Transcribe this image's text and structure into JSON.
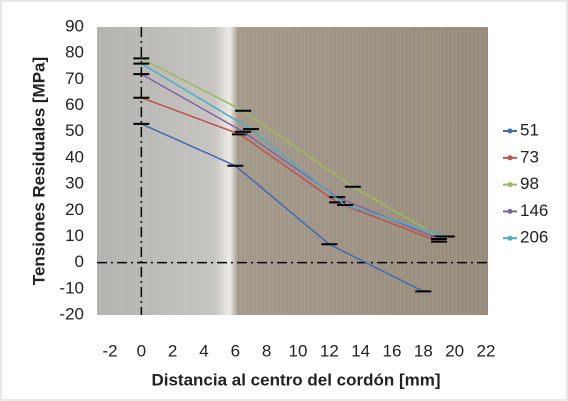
{
  "chart_data": {
    "type": "line",
    "xlabel": "Distancia al centro del cordón [mm]",
    "ylabel": "Tensiones Residuales [MPa]",
    "xlim": [
      -2,
      22
    ],
    "xticks": [
      -2,
      0,
      2,
      4,
      6,
      8,
      10,
      12,
      14,
      16,
      18,
      20,
      22
    ],
    "ylim": [
      -20,
      90
    ],
    "yticks": [
      -20,
      -10,
      0,
      10,
      20,
      30,
      40,
      50,
      60,
      70,
      80,
      90
    ],
    "legend": "right",
    "series": [
      {
        "name": "51",
        "color": "#3f6db3",
        "x": [
          0,
          6,
          12,
          18
        ],
        "values": [
          53,
          37,
          7,
          -11
        ]
      },
      {
        "name": "73",
        "color": "#c0504d",
        "x": [
          0,
          6.3,
          12.5,
          19
        ],
        "values": [
          63,
          49,
          23,
          8
        ]
      },
      {
        "name": "98",
        "color": "#9bbb59",
        "x": [
          0,
          6.5,
          13.5,
          19
        ],
        "values": [
          78,
          58,
          29,
          10
        ]
      },
      {
        "name": "146",
        "color": "#8064a2",
        "x": [
          0,
          6.5,
          12.5,
          19
        ],
        "values": [
          72,
          50,
          25,
          9
        ]
      },
      {
        "name": "206",
        "color": "#4bacc6",
        "x": [
          0,
          7,
          13,
          19.5
        ],
        "values": [
          76,
          51,
          22,
          10
        ]
      }
    ]
  }
}
